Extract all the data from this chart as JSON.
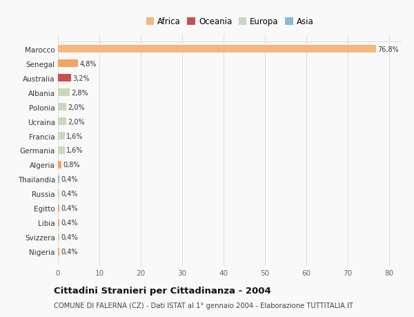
{
  "countries": [
    "Nigeria",
    "Svizzera",
    "Libia",
    "Egitto",
    "Russia",
    "Thailandia",
    "Algeria",
    "Germania",
    "Francia",
    "Ucraina",
    "Polonia",
    "Albania",
    "Australia",
    "Senegal",
    "Marocco"
  ],
  "values": [
    0.4,
    0.4,
    0.4,
    0.4,
    0.4,
    0.4,
    0.8,
    1.6,
    1.6,
    2.0,
    2.0,
    2.8,
    3.2,
    4.8,
    76.8
  ],
  "labels": [
    "0,4%",
    "0,4%",
    "0,4%",
    "0,4%",
    "0,4%",
    "0,4%",
    "0,8%",
    "1,6%",
    "1,6%",
    "2,0%",
    "2,0%",
    "2,8%",
    "3,2%",
    "4,8%",
    "76,8%"
  ],
  "colors": [
    "#f4a460",
    "#c8d8b8",
    "#f4a460",
    "#f4a460",
    "#c8d8b8",
    "#8ab8d8",
    "#f4a460",
    "#c8d8b8",
    "#c8d8b8",
    "#c8d8b8",
    "#c8d8b8",
    "#c8d8b8",
    "#c85050",
    "#f4a460",
    "#f4b87c"
  ],
  "legend": [
    {
      "label": "Africa",
      "color": "#f4b87c"
    },
    {
      "label": "Oceania",
      "color": "#c85050"
    },
    {
      "label": "Europa",
      "color": "#c8d8b8"
    },
    {
      "label": "Asia",
      "color": "#8ab8d8"
    }
  ],
  "title": "Cittadini Stranieri per Cittadinanza - 2004",
  "subtitle": "COMUNE DI FALERNA (CZ) - Dati ISTAT al 1° gennaio 2004 - Elaborazione TUTTITALIA.IT",
  "xlim": [
    0,
    83
  ],
  "xticks": [
    0,
    10,
    20,
    30,
    40,
    50,
    60,
    70,
    80
  ],
  "bg_color": "#f9f9f9",
  "grid_color": "#dddddd"
}
